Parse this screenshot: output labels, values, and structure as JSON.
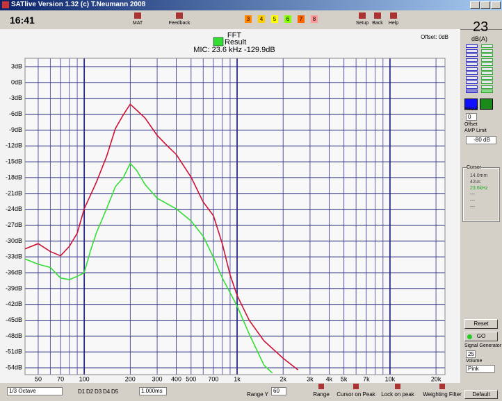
{
  "window": {
    "title": "SATlive Version 1.32 (c) T.Neumann 2008"
  },
  "toolbar": {
    "time": "16:41",
    "buttons": [
      "MAT",
      "Feedback",
      "Setup",
      "Back",
      "Help"
    ],
    "channels": [
      "3",
      "4",
      "5",
      "6",
      "7",
      "8"
    ]
  },
  "chart_data": {
    "type": "line",
    "title": "FFT",
    "subtitle": "MIC: 23.6 kHz -129.9dB",
    "annotation": "Offset: 0dB",
    "xscale": "log",
    "xlim": [
      41,
      22900
    ],
    "ylim": [
      -55.3,
      4.6
    ],
    "grid": true,
    "xticks": [
      50,
      70,
      100,
      200,
      300,
      400,
      500,
      700,
      {
        "value": 1000,
        "label": "1k"
      },
      {
        "value": 2000,
        "label": "2k"
      },
      {
        "value": 3000,
        "label": "3k"
      },
      {
        "value": 4000,
        "label": "4k"
      },
      {
        "value": 5000,
        "label": "5k"
      },
      {
        "value": 7000,
        "label": "7k"
      },
      {
        "value": 10000,
        "label": "10k"
      },
      {
        "value": 20000,
        "label": "20k"
      }
    ],
    "x_minor_grid": [
      60,
      80,
      90,
      600,
      800,
      900,
      6000,
      8000,
      9000
    ],
    "yticks": [
      {
        "value": 3,
        "label": "3dB"
      },
      {
        "value": 0,
        "label": "0dB"
      },
      {
        "value": -3,
        "label": "-3dB"
      },
      {
        "value": -6,
        "label": "-6dB"
      },
      {
        "value": -9,
        "label": "-9dB"
      },
      {
        "value": -12,
        "label": "-12dB"
      },
      {
        "value": -15,
        "label": "-15dB"
      },
      {
        "value": -18,
        "label": "-18dB"
      },
      {
        "value": -21,
        "label": "-21dB"
      },
      {
        "value": -24,
        "label": "-24dB"
      },
      {
        "value": -27,
        "label": "-27dB"
      },
      {
        "value": -30,
        "label": "-30dB"
      },
      {
        "value": -33,
        "label": "-33dB"
      },
      {
        "value": -36,
        "label": "-36dB"
      },
      {
        "value": -39,
        "label": "-39dB"
      },
      {
        "value": -42,
        "label": "-42dB"
      },
      {
        "value": -45,
        "label": "-45dB"
      },
      {
        "value": -48,
        "label": "-48dB"
      },
      {
        "value": -51,
        "label": "-51dB"
      },
      {
        "value": -54,
        "label": "-54dB"
      }
    ],
    "series": [
      {
        "color": "#cc1133",
        "x": [
          41,
          50,
          60,
          70,
          80,
          90,
          100,
          120,
          140,
          160,
          180,
          200,
          220,
          250,
          300,
          350,
          400,
          500,
          600,
          700,
          800,
          900,
          1000,
          1200,
          1500,
          2000,
          2500
        ],
        "values": [
          -31.5,
          -30.5,
          -32,
          -32.8,
          -31,
          -28.5,
          -23.9,
          -18.9,
          -14,
          -8.7,
          -6.1,
          -4.1,
          -5.2,
          -6.7,
          -10,
          -12,
          -13.6,
          -17.9,
          -22.6,
          -25.2,
          -30.5,
          -36.4,
          -40.3,
          -45,
          -48.9,
          -52.2,
          -54.4
        ]
      },
      {
        "name": "Result",
        "color": "#33dd33",
        "x": [
          41,
          50,
          60,
          70,
          80,
          90,
          100,
          110,
          120,
          140,
          160,
          180,
          200,
          220,
          250,
          300,
          400,
          500,
          600,
          700,
          800,
          1000,
          1200,
          1500,
          1700
        ],
        "values": [
          -33.4,
          -34.4,
          -35,
          -37,
          -37.3,
          -36.7,
          -36,
          -31.8,
          -28.5,
          -23.9,
          -19.7,
          -18,
          -15.3,
          -16.6,
          -19.3,
          -21.9,
          -23.9,
          -26.2,
          -29.1,
          -33.1,
          -37,
          -42.3,
          -47.6,
          -53.5,
          -55
        ]
      }
    ]
  },
  "side_panel": {
    "level": 23,
    "level_unit": "dB(A)",
    "result_label": "Result",
    "result": 0,
    "offset_label": "Offset",
    "amp_limit_label": "AMP Limit",
    "amp_limit": "-80 dB",
    "cursor": {
      "title": "Cursor",
      "lines": [
        "14.0mm",
        "42us",
        "23.6kHz",
        "---",
        "---",
        "---"
      ]
    },
    "reset": "Reset",
    "go": "GO",
    "signal_generator": "Signal Generator",
    "generator_level": 25,
    "volume_label": "Volume",
    "volume": "Pink",
    "default": "Default"
  },
  "bottom_toolbar": {
    "band": "1/3 Octave",
    "views": [
      "D1",
      "D2",
      "D3",
      "D4",
      "D5"
    ],
    "delay": "1.000ms",
    "range_y_label": "Range Y",
    "range_y": 60,
    "buttons": [
      "Range",
      "Cursor on Peak",
      "Lock on peak",
      "Weighting Filter"
    ]
  }
}
